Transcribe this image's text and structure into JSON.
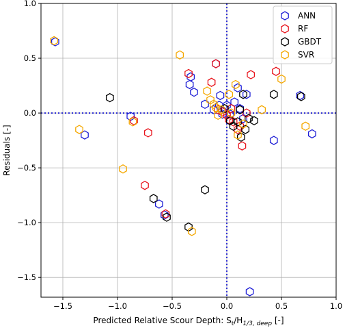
{
  "chart_data": {
    "type": "scatter",
    "xlabel": "Predicted Relative Scour Depth: S",
    "xlabel_sub": "t",
    "xlabel_mid": "/H",
    "xlabel_sub2": "1/3, deep",
    "xlabel_end": " [-]",
    "ylabel": "Residuals [-]",
    "xlim": [
      -1.7,
      1.0
    ],
    "ylim": [
      -1.68,
      1.0
    ],
    "xticks": [
      -1.5,
      -1.0,
      -0.5,
      0.0,
      0.5,
      1.0
    ],
    "xtick_labels": [
      "−1.5",
      "−1.0",
      "−0.5",
      "0.0",
      "0.5",
      "1.0"
    ],
    "yticks": [
      -1.5,
      -1.0,
      -0.5,
      0.0,
      0.5,
      1.0
    ],
    "ytick_labels": [
      "−1.5",
      "−1.0",
      "−0.5",
      "0.0",
      "0.5",
      "1.0"
    ],
    "grid": true,
    "reference_lines": {
      "x": 0,
      "y": 0,
      "color": "#0000cc",
      "style": "dotted"
    },
    "legend_position": "top-right",
    "marker": "hexagon-open",
    "series": [
      {
        "name": "ANN",
        "color": "#1f1fd6",
        "points": [
          [
            -1.57,
            0.65
          ],
          [
            -1.3,
            -0.2
          ],
          [
            -0.88,
            -0.03
          ],
          [
            -0.62,
            -0.83
          ],
          [
            -0.57,
            -0.93
          ],
          [
            -0.34,
            0.26
          ],
          [
            -0.33,
            0.33
          ],
          [
            -0.3,
            0.19
          ],
          [
            -0.2,
            0.08
          ],
          [
            -0.12,
            0.03
          ],
          [
            -0.1,
            0.45
          ],
          [
            -0.07,
            0.07
          ],
          [
            -0.06,
            0.16
          ],
          [
            -0.04,
            -0.01
          ],
          [
            0.0,
            0.07
          ],
          [
            0.03,
            -0.01
          ],
          [
            0.07,
            0.1
          ],
          [
            0.1,
            0.23
          ],
          [
            0.12,
            0.04
          ],
          [
            0.15,
            -0.05
          ],
          [
            0.18,
            0.17
          ],
          [
            0.43,
            -0.25
          ],
          [
            0.67,
            0.16
          ],
          [
            0.78,
            -0.19
          ],
          [
            0.21,
            -1.63
          ]
        ]
      },
      {
        "name": "RF",
        "color": "#e8141c",
        "points": [
          [
            -0.85,
            -0.07
          ],
          [
            -0.72,
            -0.18
          ],
          [
            -0.75,
            -0.66
          ],
          [
            -0.56,
            -0.92
          ],
          [
            -0.35,
            0.36
          ],
          [
            -0.14,
            0.28
          ],
          [
            -0.1,
            0.45
          ],
          [
            -0.08,
            0.03
          ],
          [
            -0.04,
            0.01
          ],
          [
            0.0,
            -0.02
          ],
          [
            0.02,
            -0.06
          ],
          [
            0.04,
            0.04
          ],
          [
            0.06,
            -0.08
          ],
          [
            0.1,
            -0.15
          ],
          [
            0.12,
            -0.12
          ],
          [
            0.14,
            -0.3
          ],
          [
            0.18,
            0.0
          ],
          [
            0.22,
            0.35
          ],
          [
            0.45,
            0.38
          ]
        ]
      },
      {
        "name": "GBDT",
        "color": "#000000",
        "points": [
          [
            -1.07,
            0.14
          ],
          [
            -0.67,
            -0.78
          ],
          [
            -0.55,
            -0.95
          ],
          [
            -0.2,
            -0.7
          ],
          [
            -0.35,
            -1.04
          ],
          [
            -0.02,
            0.04
          ],
          [
            0.03,
            -0.07
          ],
          [
            0.06,
            -0.12
          ],
          [
            0.1,
            -0.08
          ],
          [
            0.12,
            0.03
          ],
          [
            0.15,
            0.17
          ],
          [
            0.17,
            -0.15
          ],
          [
            0.2,
            -0.05
          ],
          [
            0.25,
            -0.07
          ],
          [
            0.43,
            0.17
          ],
          [
            0.68,
            0.15
          ],
          [
            0.13,
            -0.22
          ]
        ]
      },
      {
        "name": "SVR",
        "color": "#f5a800",
        "points": [
          [
            -1.58,
            0.66
          ],
          [
            -1.35,
            -0.15
          ],
          [
            -0.86,
            -0.08
          ],
          [
            -0.95,
            -0.51
          ],
          [
            -0.43,
            0.53
          ],
          [
            -0.32,
            -1.08
          ],
          [
            -0.18,
            0.2
          ],
          [
            -0.15,
            0.12
          ],
          [
            -0.12,
            0.08
          ],
          [
            -0.1,
            0.05
          ],
          [
            -0.08,
            -0.02
          ],
          [
            -0.05,
            0.03
          ],
          [
            0.02,
            0.17
          ],
          [
            0.04,
            0.0
          ],
          [
            0.08,
            0.26
          ],
          [
            0.1,
            -0.2
          ],
          [
            0.15,
            -0.1
          ],
          [
            0.32,
            0.03
          ],
          [
            0.5,
            0.31
          ],
          [
            0.72,
            -0.12
          ]
        ]
      }
    ]
  }
}
